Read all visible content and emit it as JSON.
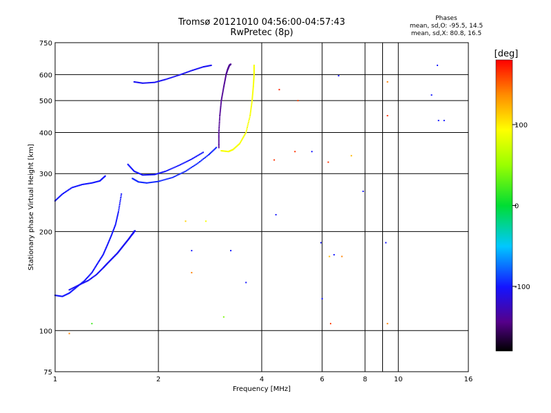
{
  "header": {
    "title_line1": "Tromsø 20121010 04:56:00-04:57:43",
    "title_line2": "RwPretec (8p)"
  },
  "phases_box": {
    "title": "Phases",
    "line_o": "mean, sd,O: -95.5, 14.5",
    "line_x": "mean, sd,X:  80.8, 16.5"
  },
  "chart_data": {
    "type": "scatter",
    "title": "Tromsø 20121010 04:56:00-04:57:43",
    "subtitle": "RwPretec (8p)",
    "xlabel": "Frequency [MHz]",
    "ylabel": "Stationary phase Virtual Height [km]",
    "x_scale": "log",
    "y_scale": "log",
    "xlim": [
      1,
      16
    ],
    "ylim": [
      75,
      750
    ],
    "x_ticks": [
      1,
      2,
      4,
      6,
      8,
      10,
      16
    ],
    "x_gridlines": [
      2,
      4,
      6,
      8,
      9,
      10
    ],
    "y_ticks": [
      75,
      100,
      200,
      300,
      400,
      500,
      600,
      750
    ],
    "y_gridlines": [
      100,
      200,
      300,
      400,
      500,
      600
    ],
    "grid": true,
    "colorbar": {
      "label": "[deg]",
      "min": -180,
      "max": 180,
      "ticks": [
        -100,
        0,
        100
      ],
      "colormap": "rainbow"
    },
    "series": [
      {
        "traces": [
          {
            "x": [
              1.0,
              1.05,
              1.1,
              1.15,
              1.22,
              1.28,
              1.33,
              1.38,
              1.42,
              1.46,
              1.5,
              1.53,
              1.56
            ],
            "y": [
              128,
              127,
              130,
              135,
              142,
              150,
              160,
              170,
              182,
              195,
              210,
              230,
              260
            ],
            "phase": -100
          },
          {
            "x": [
              1.1,
              1.18,
              1.25,
              1.32,
              1.38,
              1.42,
              1.47,
              1.52,
              1.56,
              1.6,
              1.64,
              1.67,
              1.69,
              1.7,
              1.71
            ],
            "y": [
              133,
              138,
              142,
              148,
              155,
              160,
              166,
              172,
              178,
              184,
              190,
              195,
              198,
              200,
              201
            ],
            "phase": -105
          },
          {
            "x": [
              1.0,
              1.05,
              1.12,
              1.2,
              1.28,
              1.35,
              1.4
            ],
            "y": [
              248,
              260,
              272,
              278,
              281,
              285,
              295
            ],
            "phase": -100
          },
          {
            "x": [
              1.68,
              1.75,
              1.85,
              2.0,
              2.2,
              2.4,
              2.6,
              2.8,
              2.95
            ],
            "y": [
              290,
              283,
              281,
              284,
              292,
              305,
              322,
              342,
              360
            ],
            "phase": -95
          },
          {
            "x": [
              1.63,
              1.7,
              1.8,
              1.95,
              2.1,
              2.3,
              2.5,
              2.7
            ],
            "y": [
              320,
              305,
              297,
              298,
              305,
              318,
              332,
              348
            ],
            "phase": -100
          },
          {
            "x": [
              1.7,
              1.8,
              1.95,
              2.1,
              2.3,
              2.5,
              2.7,
              2.85
            ],
            "y": [
              570,
              565,
              568,
              580,
              598,
              617,
              633,
              640
            ],
            "phase": -105
          },
          {
            "x": [
              3.0,
              3.0,
              3.02,
              3.05,
              3.1,
              3.15,
              3.18,
              3.2,
              3.22,
              3.25
            ],
            "y": [
              360,
              400,
              450,
              500,
              550,
              600,
              620,
              630,
              640,
              645
            ],
            "phase": -140
          },
          {
            "x": [
              3.05,
              3.2,
              3.3,
              3.45,
              3.6,
              3.7,
              3.75,
              3.78,
              3.8,
              3.8
            ],
            "y": [
              352,
              350,
              355,
              370,
              400,
              450,
              500,
              550,
              600,
              640
            ],
            "phase": 90
          }
        ]
      },
      {
        "points": [
          {
            "x": 1.28,
            "y": 105,
            "phase": 20
          },
          {
            "x": 1.1,
            "y": 98,
            "phase": 140
          },
          {
            "x": 2.4,
            "y": 215,
            "phase": 110
          },
          {
            "x": 2.5,
            "y": 175,
            "phase": -100
          },
          {
            "x": 2.5,
            "y": 150,
            "phase": 140
          },
          {
            "x": 2.75,
            "y": 215,
            "phase": 90
          },
          {
            "x": 3.1,
            "y": 110,
            "phase": 40
          },
          {
            "x": 3.25,
            "y": 175,
            "phase": -100
          },
          {
            "x": 3.6,
            "y": 140,
            "phase": -100
          },
          {
            "x": 4.35,
            "y": 330,
            "phase": 165
          },
          {
            "x": 4.4,
            "y": 225,
            "phase": -100
          },
          {
            "x": 4.5,
            "y": 540,
            "phase": 170
          },
          {
            "x": 5.0,
            "y": 350,
            "phase": 165
          },
          {
            "x": 5.1,
            "y": 500,
            "phase": 160
          },
          {
            "x": 5.6,
            "y": 350,
            "phase": -100
          },
          {
            "x": 5.95,
            "y": 185,
            "phase": -100
          },
          {
            "x": 6.0,
            "y": 125,
            "phase": -100
          },
          {
            "x": 6.25,
            "y": 325,
            "phase": 165
          },
          {
            "x": 6.3,
            "y": 168,
            "phase": 120
          },
          {
            "x": 6.35,
            "y": 105,
            "phase": 160
          },
          {
            "x": 6.5,
            "y": 170,
            "phase": -100
          },
          {
            "x": 6.7,
            "y": 595,
            "phase": -100
          },
          {
            "x": 6.85,
            "y": 168,
            "phase": 140
          },
          {
            "x": 7.3,
            "y": 340,
            "phase": 120
          },
          {
            "x": 7.9,
            "y": 265,
            "phase": -100
          },
          {
            "x": 9.2,
            "y": 185,
            "phase": -100
          },
          {
            "x": 9.3,
            "y": 570,
            "phase": 140
          },
          {
            "x": 9.3,
            "y": 450,
            "phase": 165
          },
          {
            "x": 9.3,
            "y": 105,
            "phase": 140
          },
          {
            "x": 12.5,
            "y": 520,
            "phase": -100
          },
          {
            "x": 13.0,
            "y": 640,
            "phase": -100
          },
          {
            "x": 13.1,
            "y": 435,
            "phase": -100
          },
          {
            "x": 13.6,
            "y": 435,
            "phase": -100
          }
        ]
      }
    ]
  }
}
